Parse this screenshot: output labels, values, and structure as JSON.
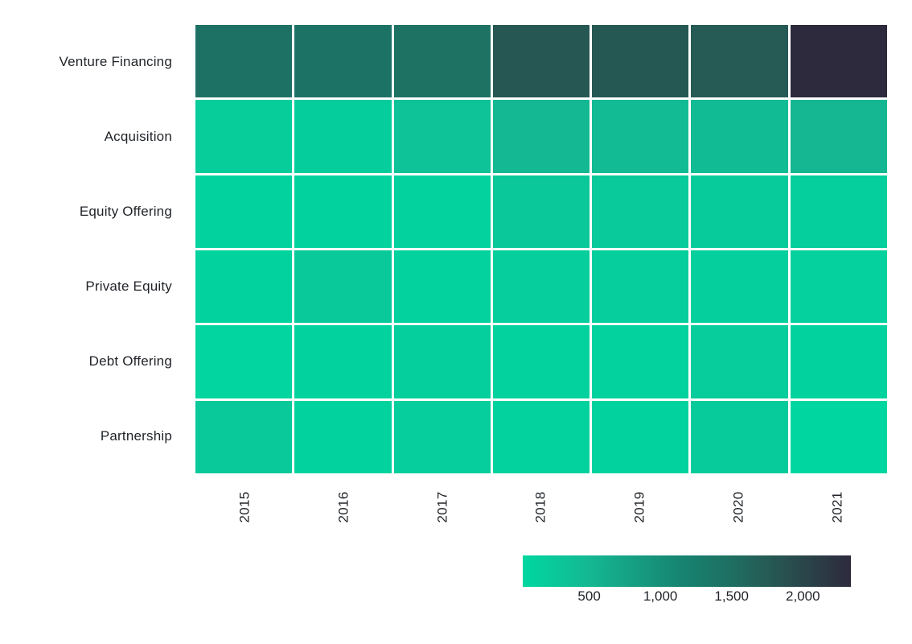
{
  "chart_data": {
    "type": "heatmap",
    "title": "",
    "xlabel": "",
    "ylabel": "",
    "x_categories": [
      "2015",
      "2016",
      "2017",
      "2018",
      "2019",
      "2020",
      "2021"
    ],
    "y_categories": [
      "Venture Financing",
      "Acquisition",
      "Equity Offering",
      "Private Equity",
      "Debt Offering",
      "Partnership"
    ],
    "series": [
      {
        "name": "Venture Financing",
        "values": [
          1450,
          1420,
          1440,
          1800,
          1780,
          1760,
          2337
        ]
      },
      {
        "name": "Acquisition",
        "values": [
          190,
          180,
          330,
          500,
          450,
          430,
          510
        ]
      },
      {
        "name": "Equity Offering",
        "values": [
          90,
          90,
          110,
          260,
          230,
          210,
          150
        ]
      },
      {
        "name": "Private Equity",
        "values": [
          90,
          240,
          110,
          170,
          170,
          140,
          130
        ]
      },
      {
        "name": "Debt Offering",
        "values": [
          70,
          90,
          150,
          110,
          110,
          200,
          90
        ]
      },
      {
        "name": "Partnership",
        "values": [
          250,
          90,
          170,
          110,
          90,
          210,
          34
        ]
      }
    ],
    "values_note": "estimated from colorbar gradient",
    "vmin": 34,
    "vmax": 2337,
    "grid_on": true,
    "grid_line_color": "#FFFFFF",
    "background_color": "#FFFFFF",
    "label_color": "#1F2328",
    "legend_position": "bottom-right",
    "colorbar": {
      "tick_labels": [
        "500",
        "1,000",
        "1,500",
        "2,000"
      ],
      "tick_values": [
        500,
        1000,
        1500,
        2000
      ],
      "colorscale": [
        {
          "frac": 0.0,
          "color": "#00D7A0"
        },
        {
          "frac": 0.2,
          "color": "#14B892"
        },
        {
          "frac": 0.5,
          "color": "#17816F"
        },
        {
          "frac": 0.64,
          "color": "#1E6E61"
        },
        {
          "frac": 0.75,
          "color": "#265A54"
        },
        {
          "frac": 1.0,
          "color": "#2E2A3D"
        }
      ]
    }
  }
}
